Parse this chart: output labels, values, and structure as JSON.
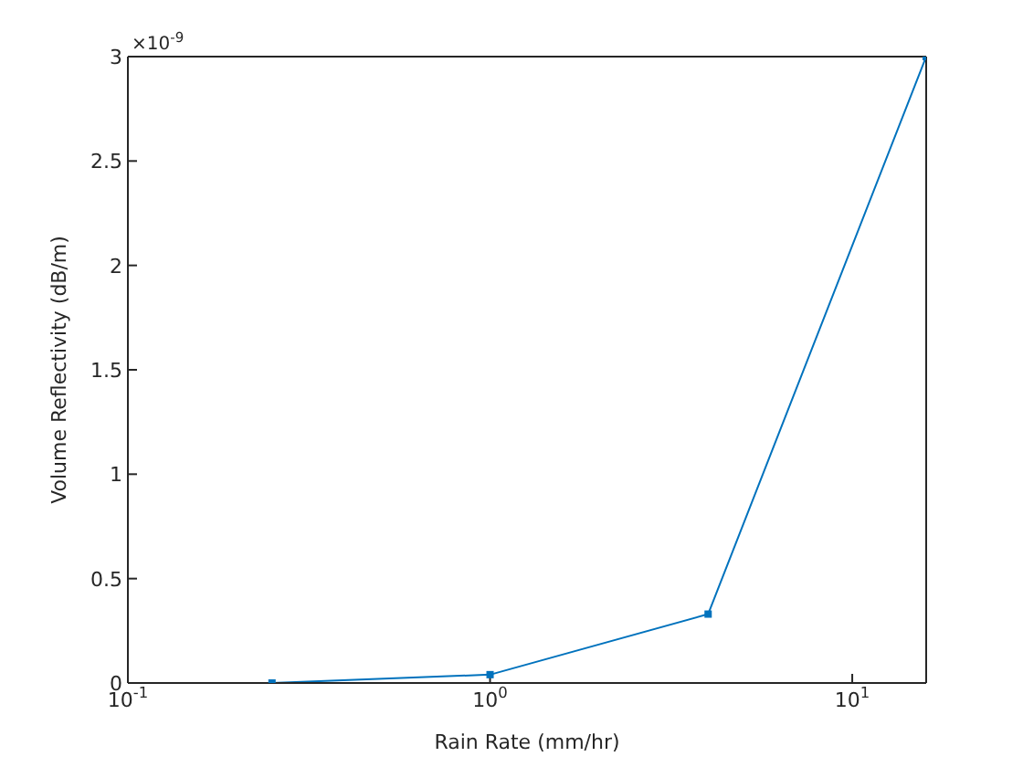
{
  "chart_data": {
    "type": "line",
    "xlabel": "Rain Rate (mm/hr)",
    "ylabel": "Volume Reflectivity (dB/m)",
    "annotations": [
      "×10$^{-9}$"
    ],
    "x": [
      0.25,
      1,
      4,
      16
    ],
    "series": [
      {
        "color": "#0072bd",
        "values": [
          0,
          0.04,
          0.33,
          3
        ]
      }
    ],
    "log": "x",
    "xlim": [
      0.1,
      16
    ],
    "xticks": [
      {
        "value": 0.1,
        "label": "10$^{-1}$"
      },
      {
        "value": 1,
        "label": "10$^{0}$"
      },
      {
        "value": 10,
        "label": "10$^{1}$"
      }
    ],
    "ylim": [
      0,
      3
    ],
    "yticks": [
      0,
      0.5,
      1,
      1.5,
      2,
      2.5,
      3
    ],
    "grid": false,
    "legend": false,
    "marker": "square",
    "line_style": "solid"
  }
}
